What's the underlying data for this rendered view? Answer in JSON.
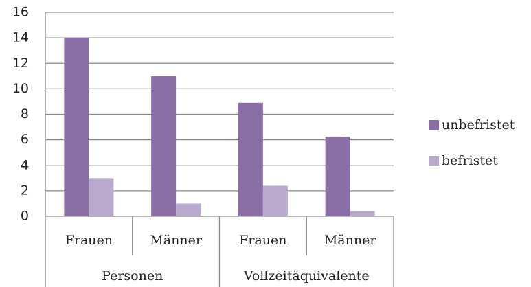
{
  "chart_data": {
    "type": "bar",
    "groups": [
      {
        "label": "Personen",
        "categories": [
          "Frauen",
          "Männer"
        ]
      },
      {
        "label": "Vollzeitäquivalente",
        "categories": [
          "Frauen",
          "Männer"
        ]
      }
    ],
    "series": [
      {
        "name": "unbefristet",
        "color": "#8a6ea6",
        "values": [
          14,
          11,
          8.9,
          6.25
        ]
      },
      {
        "name": "befristet",
        "color": "#b9aacd",
        "values": [
          3,
          1,
          2.4,
          0.4
        ]
      }
    ],
    "ylim": [
      0,
      16
    ],
    "yticks": [
      0,
      2,
      4,
      6,
      8,
      10,
      12,
      14,
      16
    ],
    "grid": true,
    "legend": "right"
  }
}
